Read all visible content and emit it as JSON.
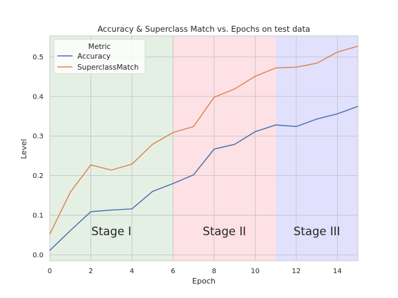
{
  "chart_data": {
    "type": "line",
    "title": "Accuracy & Superclass Match vs. Epochs on test data",
    "xlabel": "Epoch",
    "ylabel": "Level",
    "xlim": [
      0,
      15
    ],
    "ylim": [
      -0.015,
      0.553
    ],
    "x_ticks": [
      0,
      2,
      4,
      6,
      8,
      10,
      12,
      14
    ],
    "y_ticks": [
      0.0,
      0.1,
      0.2,
      0.3,
      0.4,
      0.5
    ],
    "grid": true,
    "legend": {
      "title": "Metric",
      "placement": "top-left"
    },
    "x": [
      0,
      1,
      2,
      3,
      4,
      5,
      6,
      7,
      8,
      9,
      10,
      11,
      12,
      13,
      14,
      15
    ],
    "series": [
      {
        "name": "Accuracy",
        "color": "#4c72b0",
        "values": [
          0.011,
          0.061,
          0.109,
          0.113,
          0.116,
          0.16,
          0.18,
          0.202,
          0.267,
          0.279,
          0.311,
          0.328,
          0.324,
          0.343,
          0.356,
          0.375
        ]
      },
      {
        "name": "SuperclassMatch",
        "color": "#dd8452",
        "values": [
          0.052,
          0.158,
          0.227,
          0.214,
          0.229,
          0.279,
          0.309,
          0.324,
          0.398,
          0.419,
          0.451,
          0.472,
          0.474,
          0.484,
          0.512,
          0.527
        ]
      }
    ],
    "stages": [
      {
        "label": "Stage I",
        "start": 0,
        "end": 6,
        "color": "#e5f0e5"
      },
      {
        "label": "Stage II",
        "start": 6,
        "end": 11,
        "color": "#fee1e5"
      },
      {
        "label": "Stage III",
        "start": 11,
        "end": 15,
        "color": "#e1e1fe"
      }
    ]
  }
}
